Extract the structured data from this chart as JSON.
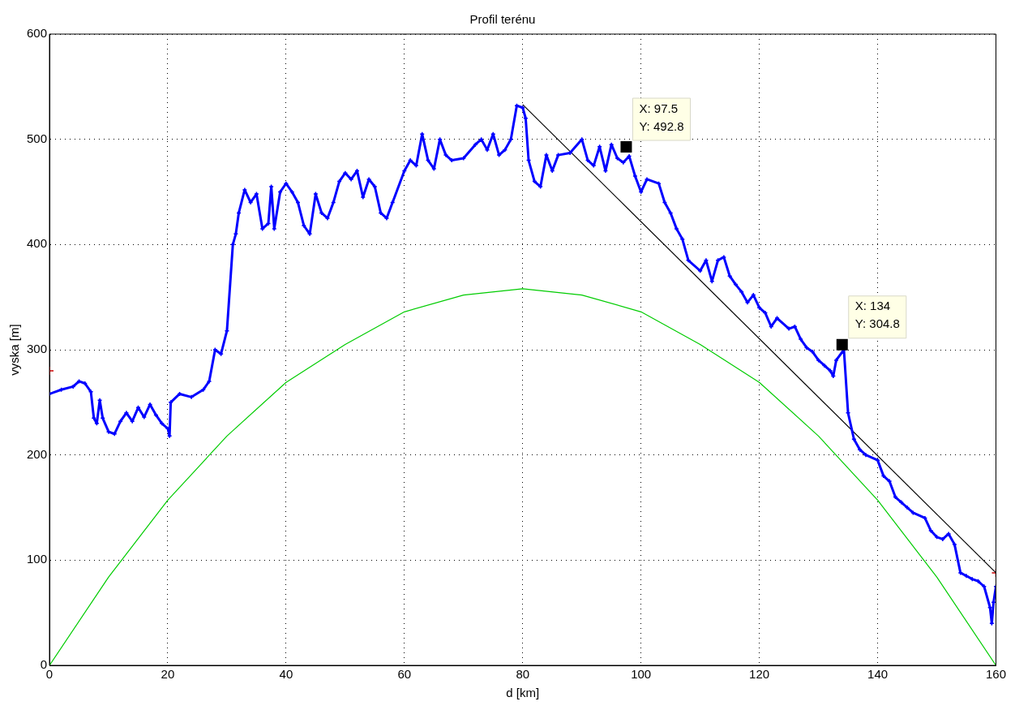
{
  "chart_data": {
    "type": "line",
    "title": "Profil terénu",
    "xlabel": "d [km]",
    "ylabel": "vyska [m]",
    "xlim": [
      0,
      160
    ],
    "xticks": [
      0,
      20,
      40,
      60,
      80,
      100,
      120,
      140,
      160
    ],
    "ylim": [
      0,
      600
    ],
    "yticks": [
      0,
      100,
      200,
      300,
      400,
      500,
      600
    ],
    "grid": true,
    "line_style": "solid",
    "series": [
      {
        "color": "#0000ff",
        "marker": "cross",
        "x": [
          0,
          2,
          4,
          5,
          6,
          7,
          7.5,
          8,
          8.5,
          9,
          10,
          11,
          12,
          13,
          14,
          15,
          16,
          17,
          18,
          19,
          20,
          20.3,
          20.5,
          22,
          24,
          26,
          27,
          28,
          29,
          30,
          31,
          31.5,
          32,
          33,
          34,
          35,
          36,
          37,
          37.5,
          38,
          39,
          40,
          41,
          42,
          43,
          44,
          45,
          46,
          47,
          48,
          49,
          50,
          51,
          52,
          53,
          54,
          55,
          56,
          57,
          58,
          60,
          61,
          62,
          63,
          64,
          65,
          66,
          67,
          68,
          70,
          72,
          73,
          74,
          75,
          76,
          77,
          78,
          79,
          80,
          80.5,
          81,
          82,
          83,
          84,
          85,
          86,
          88,
          90,
          91,
          92,
          93,
          94,
          95,
          96,
          97,
          98,
          99,
          100,
          101,
          103,
          104,
          105,
          106,
          107,
          108,
          110,
          111,
          112,
          113,
          114,
          115,
          116,
          117,
          118,
          119,
          120,
          121,
          122,
          123,
          125,
          126,
          127,
          128,
          129,
          130,
          131,
          132,
          132.5,
          133,
          134.3,
          135,
          136,
          137,
          138,
          140,
          141,
          142,
          143,
          144,
          145,
          146,
          148,
          149,
          150,
          151,
          152,
          153,
          154,
          155,
          156,
          157,
          158,
          159,
          159.3,
          159.6,
          160
        ],
        "values": [
          258,
          262,
          265,
          270,
          268,
          260,
          235,
          230,
          252,
          235,
          222,
          220,
          232,
          240,
          232,
          245,
          236,
          248,
          238,
          230,
          225,
          218,
          250,
          258,
          255,
          262,
          270,
          300,
          296,
          318,
          400,
          410,
          430,
          452,
          440,
          448,
          415,
          420,
          455,
          415,
          450,
          458,
          450,
          440,
          418,
          410,
          448,
          430,
          425,
          440,
          460,
          468,
          462,
          470,
          445,
          462,
          455,
          430,
          425,
          440,
          470,
          480,
          475,
          505,
          480,
          472,
          500,
          485,
          480,
          482,
          495,
          500,
          490,
          505,
          485,
          490,
          500,
          532,
          530,
          520,
          480,
          460,
          455,
          485,
          470,
          485,
          487,
          500,
          480,
          475,
          493,
          470,
          495,
          482,
          478,
          484,
          465,
          450,
          462,
          458,
          440,
          430,
          415,
          405,
          385,
          375,
          385,
          365,
          385,
          388,
          370,
          362,
          355,
          345,
          352,
          340,
          335,
          322,
          330,
          320,
          322,
          310,
          302,
          298,
          290,
          285,
          280,
          275,
          290,
          300,
          240,
          215,
          205,
          200,
          195,
          180,
          175,
          160,
          155,
          150,
          145,
          140,
          128,
          122,
          120,
          125,
          115,
          88,
          85,
          82,
          80,
          75,
          55,
          40,
          60,
          75
        ]
      },
      {
        "color": "#00cc00",
        "marker": "none",
        "x": [
          0,
          10,
          20,
          30,
          40,
          50,
          60,
          70,
          80,
          90,
          100,
          110,
          120,
          130,
          140,
          150,
          160
        ],
        "values": [
          0,
          84,
          157,
          218,
          269,
          305,
          336,
          352,
          358,
          352,
          336,
          305,
          269,
          218,
          157,
          84,
          0
        ]
      },
      {
        "color": "#000000",
        "marker": "none",
        "x": [
          80,
          160
        ],
        "values": [
          533,
          88
        ]
      },
      {
        "type": "scatter",
        "color": "#cc0000",
        "marker": "cross",
        "x": [
          0,
          160
        ],
        "values": [
          280,
          88
        ]
      }
    ],
    "annotations": [
      {
        "text": "X: 97.5\nY: 492.8",
        "x": 97.5,
        "y": 492.8
      },
      {
        "text": "X: 134\nY: 304.8",
        "x": 134,
        "y": 304.8
      }
    ]
  }
}
